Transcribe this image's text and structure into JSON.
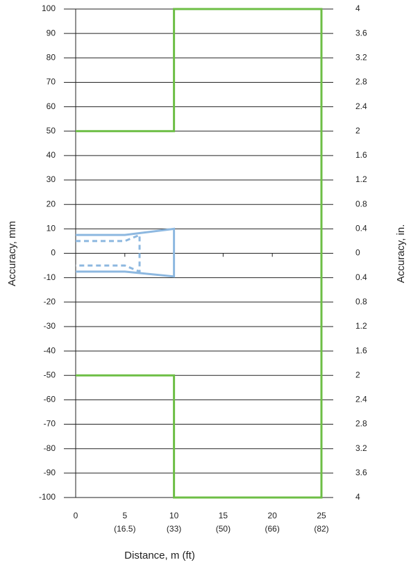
{
  "chart_data": {
    "type": "line",
    "xlabel": "Distance, m (ft)",
    "ylabel": "Accuracy, mm",
    "y2label": "Accuracy, in.",
    "xlim": [
      0,
      25
    ],
    "xticks": [
      0,
      5,
      10,
      15,
      20,
      25
    ],
    "xtick_sublabels": [
      null,
      "(16.5)",
      "(33)",
      "(50)",
      "(66)",
      "(82)"
    ],
    "ylim": [
      -100,
      100
    ],
    "yticks": [
      -100,
      -90,
      -80,
      -70,
      -60,
      -50,
      -40,
      -30,
      -20,
      -10,
      0,
      10,
      20,
      30,
      40,
      50,
      60,
      70,
      80,
      90,
      100
    ],
    "y2lim": [
      -4,
      4
    ],
    "y2ticks": [
      {
        "value": -4,
        "label": "4"
      },
      {
        "value": -3.6,
        "label": "3.6"
      },
      {
        "value": -3.2,
        "label": "3.2"
      },
      {
        "value": -2.8,
        "label": "2.8"
      },
      {
        "value": -2.4,
        "label": "2.4"
      },
      {
        "value": -2,
        "label": "2"
      },
      {
        "value": -1.6,
        "label": "1.6"
      },
      {
        "value": -1.2,
        "label": "1.2"
      },
      {
        "value": -0.8,
        "label": "0.8"
      },
      {
        "value": -0.4,
        "label": "0.4"
      },
      0,
      0.4,
      0.8,
      1.2,
      1.6,
      2,
      2.4,
      2.8,
      3.2,
      3.6,
      4
    ],
    "grid": true,
    "series": [
      {
        "color": "#6dbe45",
        "dashed": false,
        "x": [
          0,
          10,
          10,
          25,
          25,
          10,
          10,
          0
        ],
        "values": [
          50,
          50,
          100,
          100,
          -100,
          -100,
          -50,
          -50
        ]
      },
      {
        "color": "#8db8e0",
        "dashed": false,
        "x": [
          0,
          5,
          10,
          10,
          5,
          0
        ],
        "values": [
          7.5,
          7.5,
          10,
          -9.5,
          -7.5,
          -7.5
        ]
      },
      {
        "color": "#8db8e0",
        "dashed": true,
        "x": [
          0,
          5,
          6.5,
          6.5,
          5,
          0
        ],
        "values": [
          5,
          5,
          7.5,
          -7.5,
          -5,
          -5
        ]
      }
    ]
  }
}
